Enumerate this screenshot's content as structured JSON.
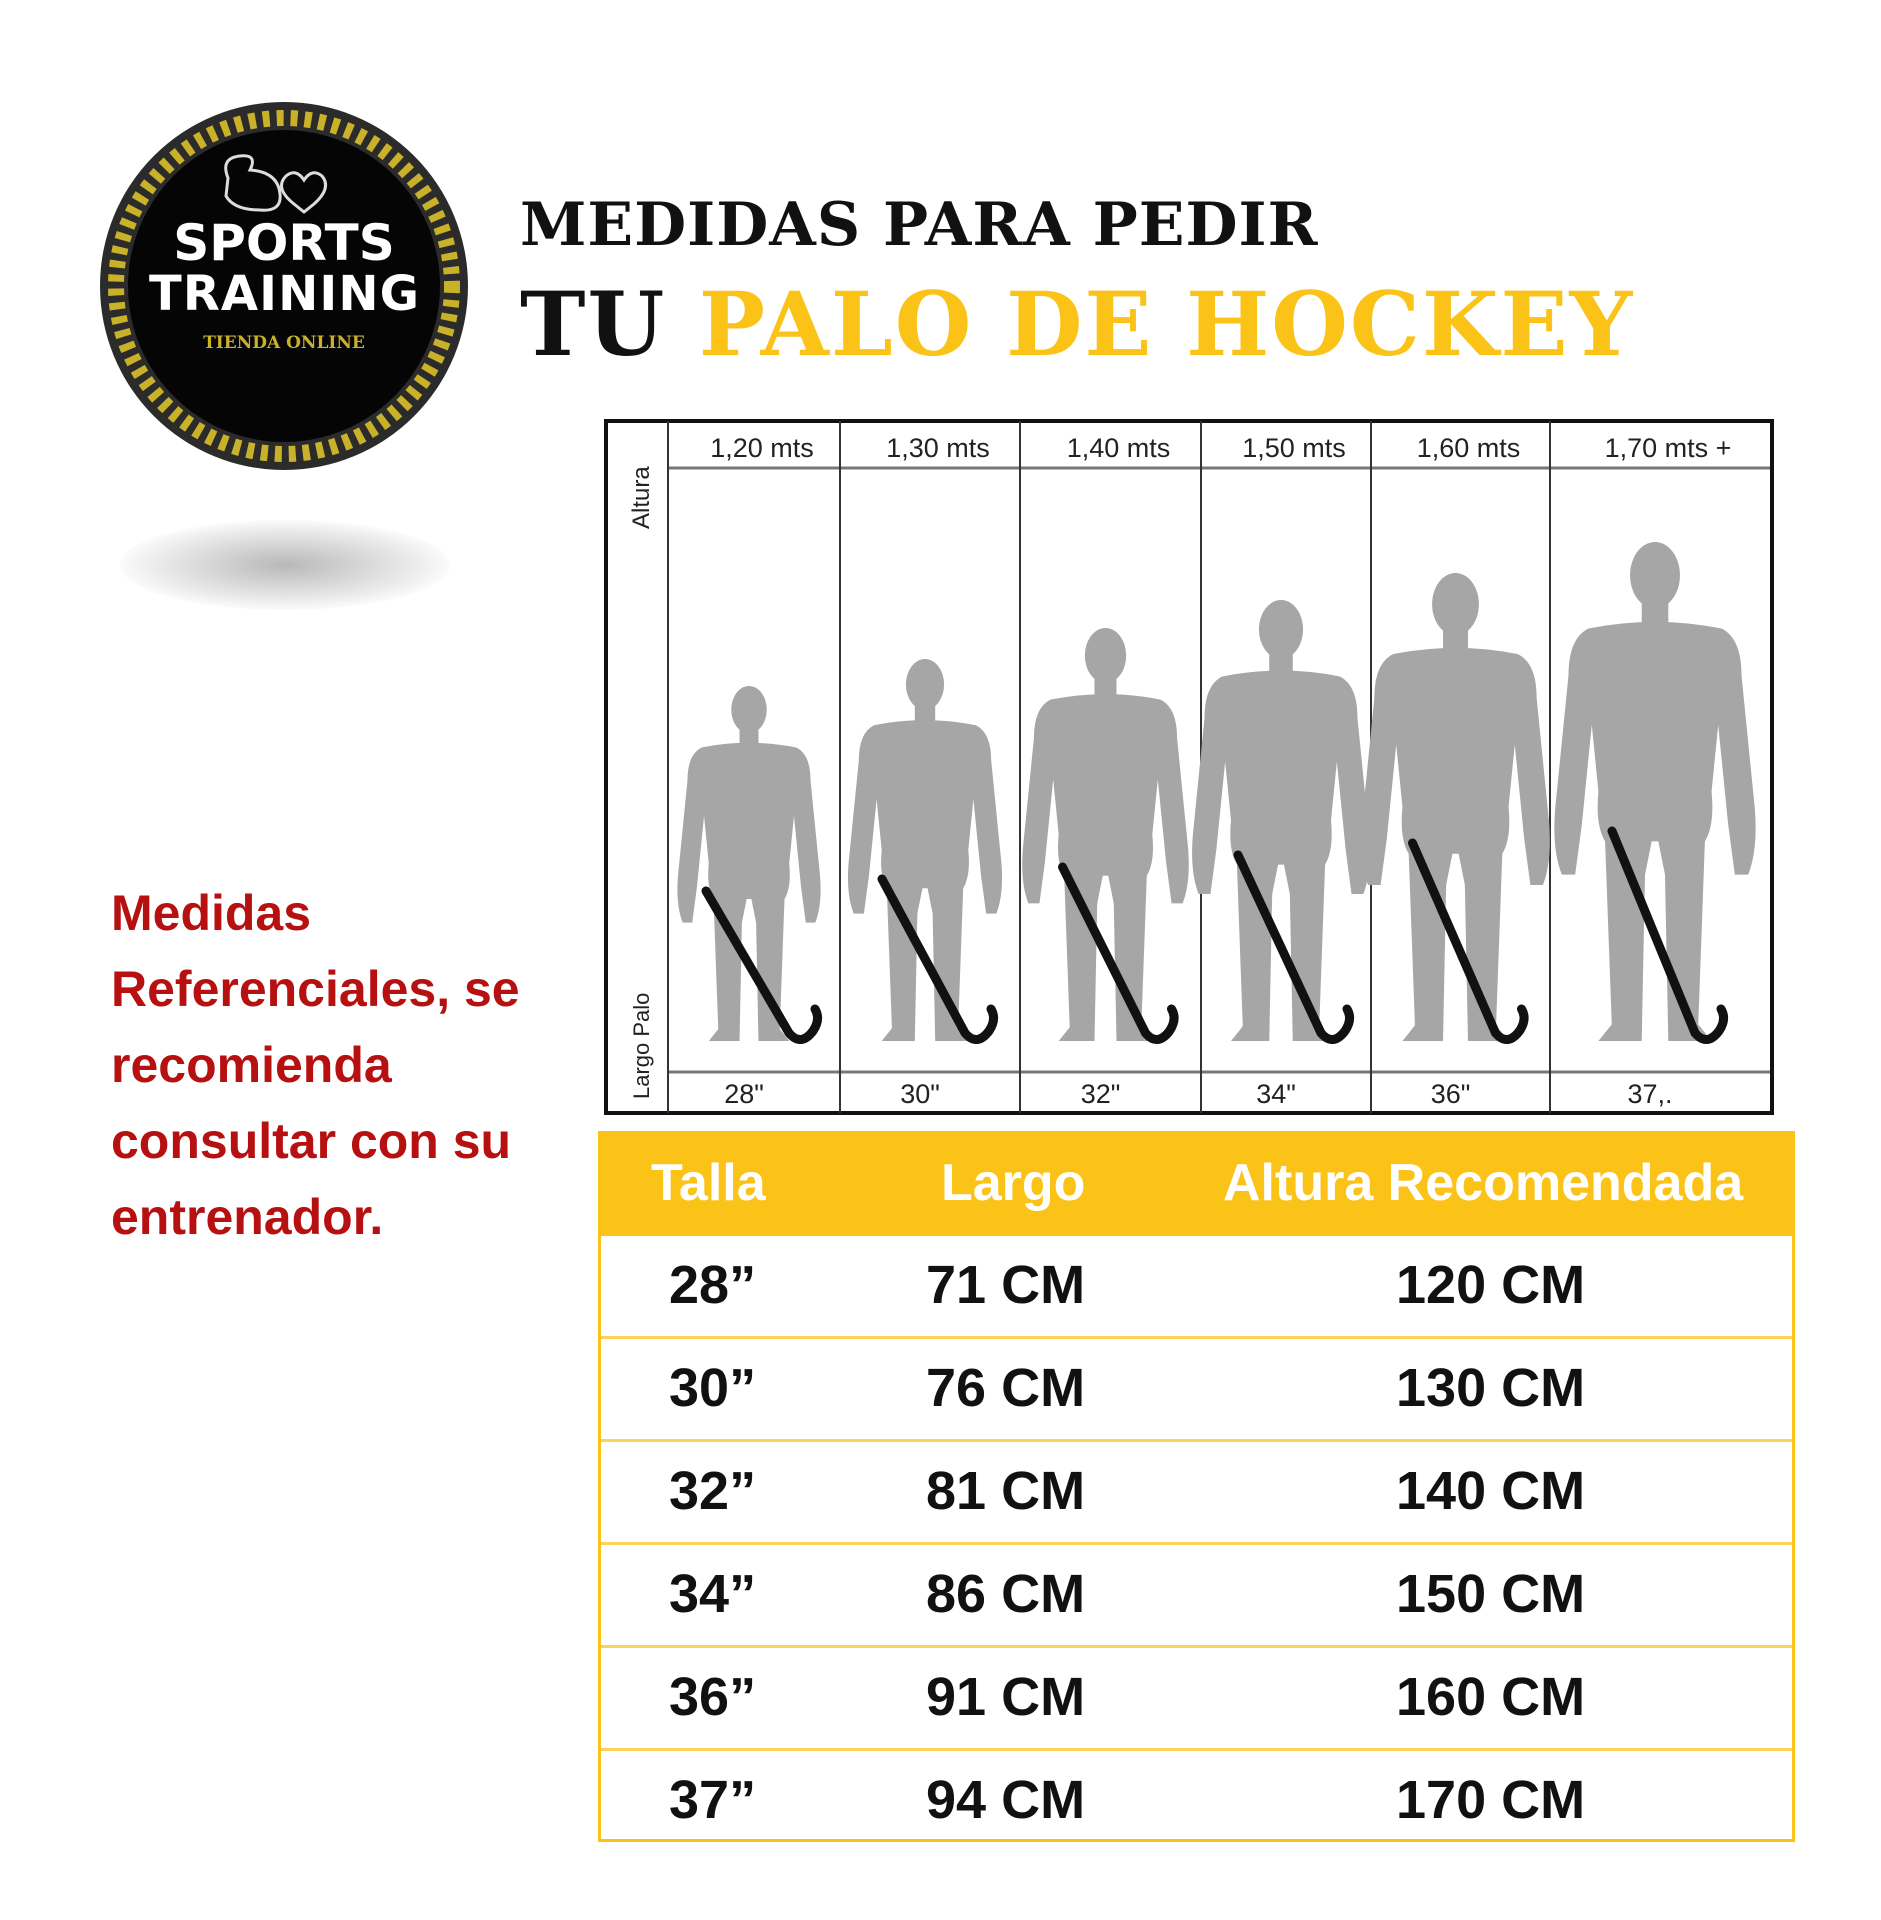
{
  "logo": {
    "line1": "SPORTS",
    "line2": "TRAINING",
    "tagline": "TIENDA ONLINE",
    "colors": {
      "ring": "#2b2b2b",
      "stripe": "#c9b12a",
      "text": "#ffffff"
    }
  },
  "title": {
    "line1": "MEDIDAS PARA PEDIR",
    "line2_prefix": "TU",
    "line2_highlight": "PALO DE HOCKEY"
  },
  "diagram": {
    "top_axis_label": "Altura",
    "bottom_axis_label": "Largo Palo",
    "heights": [
      "1,20 mts",
      "1,30 mts",
      "1,40 mts",
      "1,50 mts",
      "1,60 mts",
      "1,70 mts +"
    ],
    "lengths": [
      "28\"",
      "30\"",
      "32\"",
      "34\"",
      "36\"",
      "37,."
    ],
    "figure_color": "#a6a6a6",
    "stick_color": "#111111"
  },
  "note": {
    "text": "Medidas Referenciales, se recomienda consultar con su entrenador.",
    "color": "#b71010"
  },
  "size_table": {
    "headers": [
      "Talla",
      "Largo",
      "Altura Recomendada"
    ],
    "rows": [
      [
        "28”",
        "71 CM",
        "120 CM"
      ],
      [
        "30”",
        "76 CM",
        "130 CM"
      ],
      [
        "32”",
        "81 CM",
        "140 CM"
      ],
      [
        "34”",
        "86 CM",
        "150 CM"
      ],
      [
        "36”",
        "91 CM",
        "160 CM"
      ],
      [
        "37”",
        "94 CM",
        "170 CM"
      ]
    ],
    "accent": "#fbc218"
  }
}
